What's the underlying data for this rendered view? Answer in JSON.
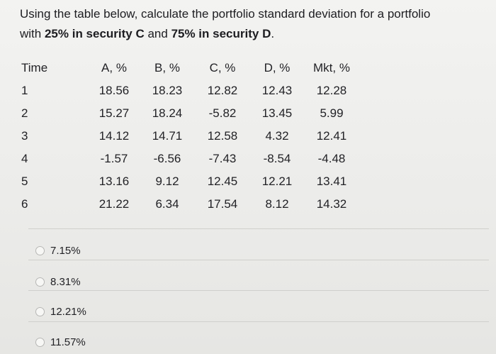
{
  "question": {
    "line1": "Using the table below, calculate the portfolio standard deviation for a portfolio",
    "line2_prefix": "with ",
    "line2_bold1": "25% in security C",
    "line2_middle": " and ",
    "line2_bold2": "75% in security D",
    "line2_suffix": "."
  },
  "table": {
    "headers": [
      "Time",
      "A, %",
      "B, %",
      "C, %",
      "D, %",
      "Mkt, %"
    ],
    "rows": [
      [
        "1",
        "18.56",
        "18.23",
        "12.82",
        "12.43",
        "12.28"
      ],
      [
        "2",
        "15.27",
        "18.24",
        "-5.82",
        "13.45",
        "5.99"
      ],
      [
        "3",
        "14.12",
        "14.71",
        "12.58",
        "4.32",
        "12.41"
      ],
      [
        "4",
        "-1.57",
        "-6.56",
        "-7.43",
        "-8.54",
        "-4.48"
      ],
      [
        "5",
        "13.16",
        "9.12",
        "12.45",
        "12.21",
        "13.41"
      ],
      [
        "6",
        "21.22",
        "6.34",
        "17.54",
        "8.12",
        "14.32"
      ]
    ]
  },
  "answers": [
    {
      "label": "7.15%"
    },
    {
      "label": "8.31%"
    },
    {
      "label": "12.21%"
    },
    {
      "label": "11.57%"
    }
  ]
}
